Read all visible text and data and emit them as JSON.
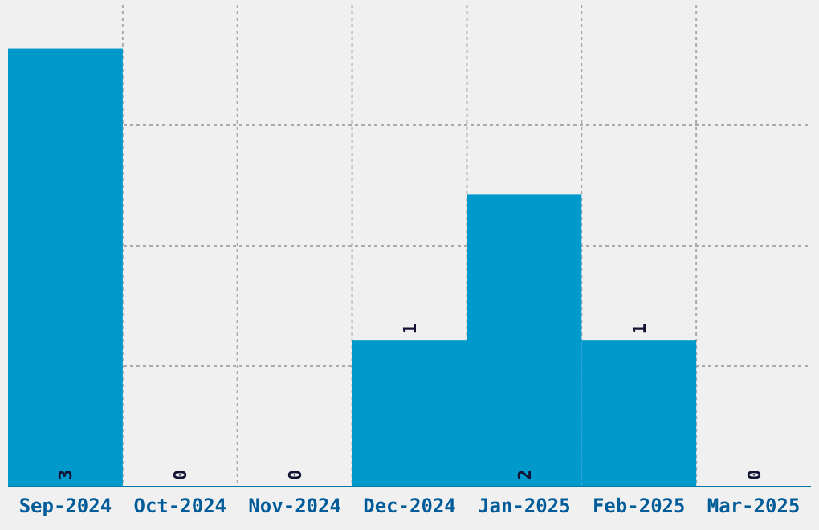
{
  "chart_data": {
    "type": "bar",
    "categories": [
      "Sep-2024",
      "Oct-2024",
      "Nov-2024",
      "Dec-2024",
      "Jan-2025",
      "Feb-2025",
      "Mar-2025"
    ],
    "values": [
      3,
      0,
      0,
      1,
      2,
      1,
      0
    ],
    "color": "#0099cc",
    "data_labels": true,
    "grid": true
  }
}
